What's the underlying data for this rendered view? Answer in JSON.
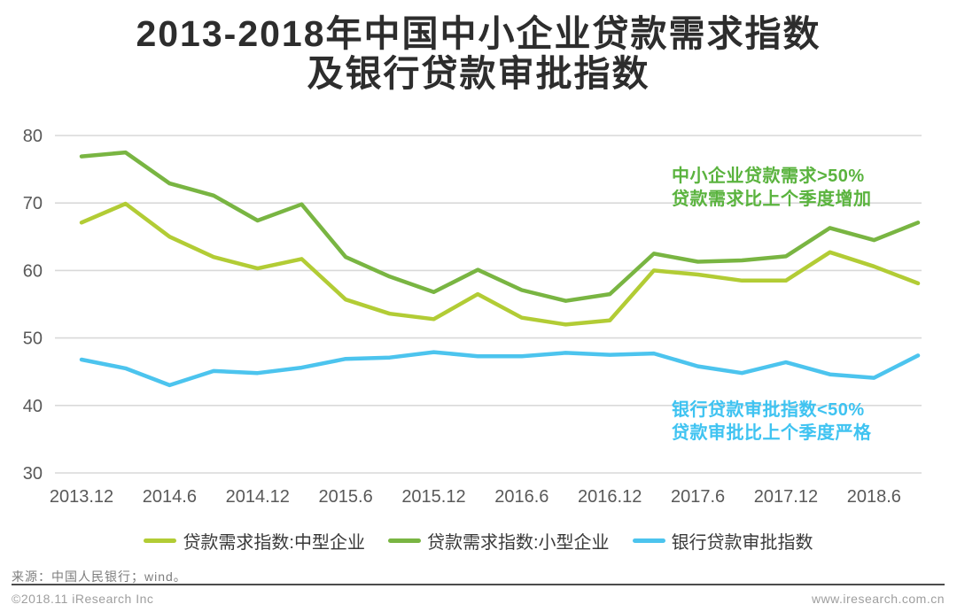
{
  "title": {
    "line1": "2013-2018年中国中小企业贷款需求指数",
    "line2": "及银行贷款审批指数"
  },
  "chart_data": {
    "type": "line",
    "title": "2013-2018年中国中小企业贷款需求指数及银行贷款审批指数",
    "x": [
      "2013.12",
      "2014.3",
      "2014.6",
      "2014.9",
      "2014.12",
      "2015.3",
      "2015.6",
      "2015.9",
      "2015.12",
      "2016.3",
      "2016.6",
      "2016.9",
      "2016.12",
      "2017.3",
      "2017.6",
      "2017.9",
      "2017.12",
      "2018.3",
      "2018.6",
      "2018.9"
    ],
    "x_tick_labels": [
      "2013.12",
      "2014.6",
      "2014.12",
      "2015.6",
      "2015.12",
      "2016.6",
      "2016.12",
      "2017.6",
      "2017.12",
      "2018.6"
    ],
    "y_ticks": [
      80,
      70,
      60,
      50,
      40,
      30
    ],
    "ylim": [
      30,
      80
    ],
    "grid": "horizontal",
    "legend_position": "bottom",
    "series": [
      {
        "name": "贷款需求指数:中型企业",
        "color": "#b2cc35",
        "values": [
          67.1,
          69.9,
          65.0,
          62.0,
          60.3,
          61.7,
          55.7,
          53.6,
          52.8,
          56.5,
          53.0,
          52.0,
          52.6,
          60.0,
          59.4,
          58.5,
          58.5,
          62.7,
          60.6,
          58.1
        ]
      },
      {
        "name": "贷款需求指数:小型企业",
        "color": "#79b542",
        "values": [
          76.9,
          77.5,
          72.9,
          71.1,
          67.4,
          69.8,
          62.0,
          59.1,
          56.8,
          60.1,
          57.1,
          55.5,
          56.5,
          62.5,
          61.3,
          61.5,
          62.1,
          66.3,
          64.5,
          67.1
        ]
      },
      {
        "name": "银行贷款审批指数",
        "color": "#4cc4ee",
        "values": [
          46.8,
          45.5,
          43.0,
          45.1,
          44.8,
          45.6,
          46.9,
          47.1,
          47.9,
          47.3,
          47.3,
          47.8,
          47.5,
          47.7,
          45.8,
          44.8,
          46.4,
          44.6,
          44.1,
          47.4
        ]
      }
    ],
    "annotations": [
      {
        "line1": "中小企业贷款需求>50%",
        "line2": "贷款需求比上个季度增加",
        "color": "#5ab33e"
      },
      {
        "line1": "银行贷款审批指数<50%",
        "line2": "贷款审批比上个季度严格",
        "color": "#3fc3f1"
      }
    ]
  },
  "colors": {
    "axis_text": "#595959",
    "gridline": "#d9d9d9",
    "title_text": "#2d2d2d"
  },
  "footer": {
    "source": "来源：中国人民银行；wind。",
    "copyright": "©2018.11 iResearch Inc",
    "website": "www.iresearch.com.cn"
  }
}
